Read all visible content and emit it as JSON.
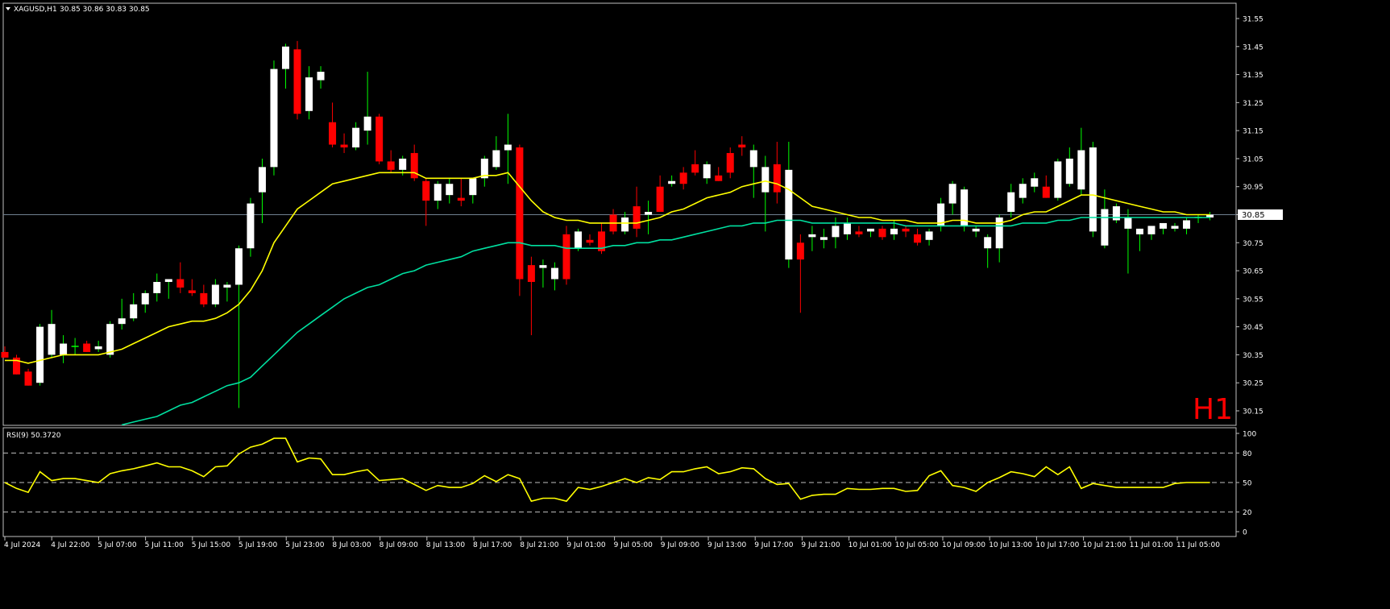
{
  "header": {
    "symbol_info": "XAGUSD,H1",
    "ohlc": "30.85 30.86 30.83 30.85",
    "timeframe_label": "H1"
  },
  "rsi_panel": {
    "label": "RSI(9) 50.3720",
    "levels": [
      80,
      50,
      20
    ],
    "scale_labels": [
      "100",
      "80",
      "50",
      "20",
      "0"
    ]
  },
  "colors": {
    "background": "#000000",
    "frame": "#c0c0c0",
    "bull_body": "#ffffff",
    "bear_body": "#ff0000",
    "bull_wick": "#00ff00",
    "bear_wick": "#ff0000",
    "ma_fast": "#ffff00",
    "ma_slow": "#00e0a0",
    "rsi_line": "#ffff00",
    "last_price_line": "#708090",
    "timeframe_label": "#ff0000",
    "text": "#ffffff"
  },
  "chart_data": {
    "type": "candlestick",
    "symbol": "XAGUSD",
    "timeframe": "H1",
    "price_axis": {
      "range": [
        30.1,
        31.6
      ],
      "ticks": [
        "31.55",
        "31.45",
        "31.35",
        "31.25",
        "31.15",
        "31.05",
        "30.95",
        "30.85",
        "30.75",
        "30.65",
        "30.55",
        "30.45",
        "30.35",
        "30.25",
        "30.15"
      ],
      "current_price": "30.85"
    },
    "time_axis_labels": [
      "4 Jul 2024",
      "4 Jul 22:00",
      "5 Jul 07:00",
      "5 Jul 11:00",
      "5 Jul 15:00",
      "5 Jul 19:00",
      "5 Jul 23:00",
      "8 Jul 03:00",
      "8 Jul 09:00",
      "8 Jul 13:00",
      "8 Jul 17:00",
      "8 Jul 21:00",
      "9 Jul 01:00",
      "9 Jul 05:00",
      "9 Jul 09:00",
      "9 Jul 13:00",
      "9 Jul 17:00",
      "9 Jul 21:00",
      "10 Jul 01:00",
      "10 Jul 05:00",
      "10 Jul 09:00",
      "10 Jul 13:00",
      "10 Jul 17:00",
      "10 Jul 21:00",
      "11 Jul 01:00",
      "11 Jul 05:00"
    ],
    "candles": [
      {
        "o": 30.36,
        "h": 30.38,
        "l": 30.34,
        "c": 30.34
      },
      {
        "o": 30.34,
        "h": 30.35,
        "l": 30.28,
        "c": 30.28
      },
      {
        "o": 30.29,
        "h": 30.3,
        "l": 30.24,
        "c": 30.24
      },
      {
        "o": 30.25,
        "h": 30.46,
        "l": 30.24,
        "c": 30.45
      },
      {
        "o": 30.35,
        "h": 30.51,
        "l": 30.34,
        "c": 30.46
      },
      {
        "o": 30.35,
        "h": 30.42,
        "l": 30.32,
        "c": 30.39
      },
      {
        "o": 30.38,
        "h": 30.41,
        "l": 30.35,
        "c": 30.38
      },
      {
        "o": 30.39,
        "h": 30.4,
        "l": 30.36,
        "c": 30.36
      },
      {
        "o": 30.37,
        "h": 30.4,
        "l": 30.36,
        "c": 30.38
      },
      {
        "o": 30.35,
        "h": 30.47,
        "l": 30.34,
        "c": 30.46
      },
      {
        "o": 30.46,
        "h": 30.55,
        "l": 30.44,
        "c": 30.48
      },
      {
        "o": 30.48,
        "h": 30.57,
        "l": 30.47,
        "c": 30.53
      },
      {
        "o": 30.53,
        "h": 30.58,
        "l": 30.5,
        "c": 30.57
      },
      {
        "o": 30.57,
        "h": 30.64,
        "l": 30.54,
        "c": 30.61
      },
      {
        "o": 30.61,
        "h": 30.62,
        "l": 30.55,
        "c": 30.62
      },
      {
        "o": 30.62,
        "h": 30.68,
        "l": 30.57,
        "c": 30.59
      },
      {
        "o": 30.58,
        "h": 30.62,
        "l": 30.56,
        "c": 30.57
      },
      {
        "o": 30.57,
        "h": 30.6,
        "l": 30.52,
        "c": 30.53
      },
      {
        "o": 30.53,
        "h": 30.62,
        "l": 30.52,
        "c": 30.6
      },
      {
        "o": 30.59,
        "h": 30.61,
        "l": 30.54,
        "c": 30.6
      },
      {
        "o": 30.6,
        "h": 30.74,
        "l": 30.16,
        "c": 30.73
      },
      {
        "o": 30.73,
        "h": 30.91,
        "l": 30.7,
        "c": 30.89
      },
      {
        "o": 30.93,
        "h": 31.05,
        "l": 30.82,
        "c": 31.02
      },
      {
        "o": 31.02,
        "h": 31.4,
        "l": 30.99,
        "c": 31.37
      },
      {
        "o": 31.37,
        "h": 31.46,
        "l": 31.3,
        "c": 31.45
      },
      {
        "o": 31.44,
        "h": 31.47,
        "l": 31.19,
        "c": 31.21
      },
      {
        "o": 31.22,
        "h": 31.38,
        "l": 31.19,
        "c": 31.34
      },
      {
        "o": 31.33,
        "h": 31.38,
        "l": 31.3,
        "c": 31.36
      },
      {
        "o": 31.18,
        "h": 31.25,
        "l": 31.09,
        "c": 31.1
      },
      {
        "o": 31.1,
        "h": 31.14,
        "l": 31.07,
        "c": 31.09
      },
      {
        "o": 31.09,
        "h": 31.18,
        "l": 31.08,
        "c": 31.16
      },
      {
        "o": 31.15,
        "h": 31.36,
        "l": 31.1,
        "c": 31.2
      },
      {
        "o": 31.2,
        "h": 31.21,
        "l": 31.03,
        "c": 31.04
      },
      {
        "o": 31.04,
        "h": 31.08,
        "l": 31.0,
        "c": 31.01
      },
      {
        "o": 31.01,
        "h": 31.06,
        "l": 30.99,
        "c": 31.05
      },
      {
        "o": 31.07,
        "h": 31.1,
        "l": 30.97,
        "c": 30.98
      },
      {
        "o": 30.97,
        "h": 30.98,
        "l": 30.81,
        "c": 30.9
      },
      {
        "o": 30.9,
        "h": 30.97,
        "l": 30.87,
        "c": 30.96
      },
      {
        "o": 30.92,
        "h": 30.98,
        "l": 30.89,
        "c": 30.96
      },
      {
        "o": 30.91,
        "h": 30.98,
        "l": 30.88,
        "c": 30.9
      },
      {
        "o": 30.92,
        "h": 30.98,
        "l": 30.89,
        "c": 30.98
      },
      {
        "o": 30.98,
        "h": 31.06,
        "l": 30.95,
        "c": 31.05
      },
      {
        "o": 31.02,
        "h": 31.13,
        "l": 31.01,
        "c": 31.08
      },
      {
        "o": 31.08,
        "h": 31.21,
        "l": 30.96,
        "c": 31.1
      },
      {
        "o": 31.09,
        "h": 31.1,
        "l": 30.56,
        "c": 30.62
      },
      {
        "o": 30.67,
        "h": 30.7,
        "l": 30.42,
        "c": 30.61
      },
      {
        "o": 30.66,
        "h": 30.69,
        "l": 30.59,
        "c": 30.67
      },
      {
        "o": 30.62,
        "h": 30.68,
        "l": 30.58,
        "c": 30.66
      },
      {
        "o": 30.78,
        "h": 30.81,
        "l": 30.6,
        "c": 30.62
      },
      {
        "o": 30.73,
        "h": 30.8,
        "l": 30.72,
        "c": 30.79
      },
      {
        "o": 30.76,
        "h": 30.78,
        "l": 30.74,
        "c": 30.75
      },
      {
        "o": 30.79,
        "h": 30.82,
        "l": 30.71,
        "c": 30.72
      },
      {
        "o": 30.85,
        "h": 30.87,
        "l": 30.78,
        "c": 30.79
      },
      {
        "o": 30.79,
        "h": 30.86,
        "l": 30.78,
        "c": 30.84
      },
      {
        "o": 30.88,
        "h": 30.95,
        "l": 30.77,
        "c": 30.8
      },
      {
        "o": 30.85,
        "h": 30.9,
        "l": 30.78,
        "c": 30.86
      },
      {
        "o": 30.95,
        "h": 30.99,
        "l": 30.86,
        "c": 30.86
      },
      {
        "o": 30.96,
        "h": 30.99,
        "l": 30.95,
        "c": 30.97
      },
      {
        "o": 31.0,
        "h": 31.02,
        "l": 30.94,
        "c": 30.96
      },
      {
        "o": 31.03,
        "h": 31.08,
        "l": 30.99,
        "c": 31.0
      },
      {
        "o": 30.98,
        "h": 31.04,
        "l": 30.96,
        "c": 31.03
      },
      {
        "o": 30.99,
        "h": 31.02,
        "l": 30.97,
        "c": 30.97
      },
      {
        "o": 31.07,
        "h": 31.09,
        "l": 30.98,
        "c": 31.0
      },
      {
        "o": 31.1,
        "h": 31.13,
        "l": 31.06,
        "c": 31.09
      },
      {
        "o": 31.02,
        "h": 31.1,
        "l": 30.91,
        "c": 31.08
      },
      {
        "o": 30.93,
        "h": 31.06,
        "l": 30.79,
        "c": 31.02
      },
      {
        "o": 31.03,
        "h": 31.11,
        "l": 30.89,
        "c": 30.93
      },
      {
        "o": 30.69,
        "h": 31.11,
        "l": 30.66,
        "c": 31.01
      },
      {
        "o": 30.75,
        "h": 30.78,
        "l": 30.5,
        "c": 30.69
      },
      {
        "o": 30.77,
        "h": 30.81,
        "l": 30.72,
        "c": 30.78
      },
      {
        "o": 30.76,
        "h": 30.8,
        "l": 30.73,
        "c": 30.77
      },
      {
        "o": 30.77,
        "h": 30.84,
        "l": 30.73,
        "c": 30.81
      },
      {
        "o": 30.78,
        "h": 30.84,
        "l": 30.76,
        "c": 30.82
      },
      {
        "o": 30.79,
        "h": 30.81,
        "l": 30.77,
        "c": 30.78
      },
      {
        "o": 30.79,
        "h": 30.8,
        "l": 30.77,
        "c": 30.8
      },
      {
        "o": 30.8,
        "h": 30.81,
        "l": 30.76,
        "c": 30.77
      },
      {
        "o": 30.78,
        "h": 30.83,
        "l": 30.76,
        "c": 30.8
      },
      {
        "o": 30.8,
        "h": 30.81,
        "l": 30.77,
        "c": 30.79
      },
      {
        "o": 30.78,
        "h": 30.8,
        "l": 30.74,
        "c": 30.75
      },
      {
        "o": 30.76,
        "h": 30.8,
        "l": 30.74,
        "c": 30.79
      },
      {
        "o": 30.81,
        "h": 30.91,
        "l": 30.79,
        "c": 30.89
      },
      {
        "o": 30.89,
        "h": 30.97,
        "l": 30.85,
        "c": 30.96
      },
      {
        "o": 30.81,
        "h": 30.95,
        "l": 30.79,
        "c": 30.94
      },
      {
        "o": 30.79,
        "h": 30.81,
        "l": 30.77,
        "c": 30.8
      },
      {
        "o": 30.73,
        "h": 30.78,
        "l": 30.66,
        "c": 30.77
      },
      {
        "o": 30.73,
        "h": 30.85,
        "l": 30.68,
        "c": 30.84
      },
      {
        "o": 30.86,
        "h": 30.96,
        "l": 30.84,
        "c": 30.93
      },
      {
        "o": 30.91,
        "h": 30.98,
        "l": 30.89,
        "c": 30.96
      },
      {
        "o": 30.95,
        "h": 31.0,
        "l": 30.93,
        "c": 30.98
      },
      {
        "o": 30.95,
        "h": 30.99,
        "l": 30.91,
        "c": 30.91
      },
      {
        "o": 30.91,
        "h": 31.05,
        "l": 30.9,
        "c": 31.04
      },
      {
        "o": 30.96,
        "h": 31.09,
        "l": 30.95,
        "c": 31.05
      },
      {
        "o": 30.94,
        "h": 31.16,
        "l": 30.92,
        "c": 31.08
      },
      {
        "o": 30.79,
        "h": 31.11,
        "l": 30.77,
        "c": 31.09
      },
      {
        "o": 30.74,
        "h": 30.94,
        "l": 30.73,
        "c": 30.87
      },
      {
        "o": 30.83,
        "h": 30.89,
        "l": 30.82,
        "c": 30.88
      },
      {
        "o": 30.8,
        "h": 30.87,
        "l": 30.64,
        "c": 30.84
      },
      {
        "o": 30.78,
        "h": 30.8,
        "l": 30.72,
        "c": 30.8
      },
      {
        "o": 30.78,
        "h": 30.81,
        "l": 30.76,
        "c": 30.81
      },
      {
        "o": 30.8,
        "h": 30.82,
        "l": 30.78,
        "c": 30.82
      },
      {
        "o": 30.8,
        "h": 30.82,
        "l": 30.79,
        "c": 30.81
      },
      {
        "o": 30.8,
        "h": 30.84,
        "l": 30.78,
        "c": 30.83
      },
      {
        "o": 30.84,
        "h": 30.85,
        "l": 30.82,
        "c": 30.84
      },
      {
        "o": 30.84,
        "h": 30.86,
        "l": 30.83,
        "c": 30.85
      }
    ],
    "ma_fast_values": [
      30.33,
      30.33,
      30.32,
      30.33,
      30.34,
      30.35,
      30.35,
      30.35,
      30.35,
      30.36,
      30.37,
      30.39,
      30.41,
      30.43,
      30.45,
      30.46,
      30.47,
      30.47,
      30.48,
      30.5,
      30.53,
      30.58,
      30.65,
      30.75,
      30.81,
      30.87,
      30.9,
      30.93,
      30.96,
      30.97,
      30.98,
      30.99,
      31.0,
      31.0,
      31.0,
      31.0,
      30.98,
      30.98,
      30.98,
      30.98,
      30.98,
      30.99,
      30.99,
      31.0,
      30.95,
      30.9,
      30.86,
      30.84,
      30.83,
      30.83,
      30.82,
      30.82,
      30.82,
      30.82,
      30.82,
      30.83,
      30.84,
      30.86,
      30.87,
      30.89,
      30.91,
      30.92,
      30.93,
      30.95,
      30.96,
      30.97,
      30.96,
      30.94,
      30.91,
      30.88,
      30.87,
      30.86,
      30.85,
      30.84,
      30.84,
      30.83,
      30.83,
      30.83,
      30.82,
      30.82,
      30.82,
      30.83,
      30.83,
      30.82,
      30.82,
      30.82,
      30.83,
      30.85,
      30.86,
      30.86,
      30.88,
      30.9,
      30.92,
      30.92,
      30.91,
      30.9,
      30.89,
      30.88,
      30.87,
      30.86,
      30.86,
      30.85,
      30.85,
      30.85
    ],
    "ma_slow_values": [
      30.05,
      30.05,
      30.05,
      30.06,
      30.06,
      30.06,
      30.07,
      30.07,
      30.08,
      30.09,
      30.1,
      30.11,
      30.12,
      30.13,
      30.15,
      30.17,
      30.18,
      30.2,
      30.22,
      30.24,
      30.25,
      30.27,
      30.31,
      30.35,
      30.39,
      30.43,
      30.46,
      30.49,
      30.52,
      30.55,
      30.57,
      30.59,
      30.6,
      30.62,
      30.64,
      30.65,
      30.67,
      30.68,
      30.69,
      30.7,
      30.72,
      30.73,
      30.74,
      30.75,
      30.75,
      30.74,
      30.74,
      30.74,
      30.73,
      30.73,
      30.73,
      30.73,
      30.74,
      30.74,
      30.75,
      30.75,
      30.76,
      30.76,
      30.77,
      30.78,
      30.79,
      30.8,
      30.81,
      30.81,
      30.82,
      30.82,
      30.83,
      30.83,
      30.83,
      30.82,
      30.82,
      30.82,
      30.82,
      30.82,
      30.82,
      30.82,
      30.82,
      30.81,
      30.81,
      30.81,
      30.81,
      30.81,
      30.81,
      30.81,
      30.81,
      30.81,
      30.81,
      30.82,
      30.82,
      30.82,
      30.83,
      30.83,
      30.84,
      30.84,
      30.84,
      30.84,
      30.84,
      30.84,
      30.84,
      30.84,
      30.84,
      30.84,
      30.84,
      30.84
    ],
    "rsi_values": [
      50,
      44,
      40,
      61,
      52,
      54,
      54,
      52,
      50,
      59,
      62,
      64,
      67,
      70,
      66,
      66,
      62,
      56,
      66,
      67,
      79,
      86,
      89,
      95,
      95,
      71,
      75,
      74,
      58,
      58,
      61,
      63,
      52,
      53,
      54,
      48,
      42,
      47,
      45,
      45,
      49,
      57,
      51,
      58,
      54,
      31,
      34,
      34,
      31,
      45,
      43,
      46,
      50,
      54,
      50,
      55,
      53,
      61,
      61,
      64,
      66,
      59,
      61,
      65,
      64,
      54,
      48,
      49,
      33,
      37,
      38,
      38,
      44,
      43,
      43,
      44,
      44,
      41,
      42,
      57,
      62,
      47,
      45,
      41,
      50,
      55,
      61,
      59,
      56,
      66,
      58,
      66,
      44,
      49,
      47,
      45,
      45,
      45,
      45,
      45,
      49,
      50,
      50,
      50
    ]
  }
}
